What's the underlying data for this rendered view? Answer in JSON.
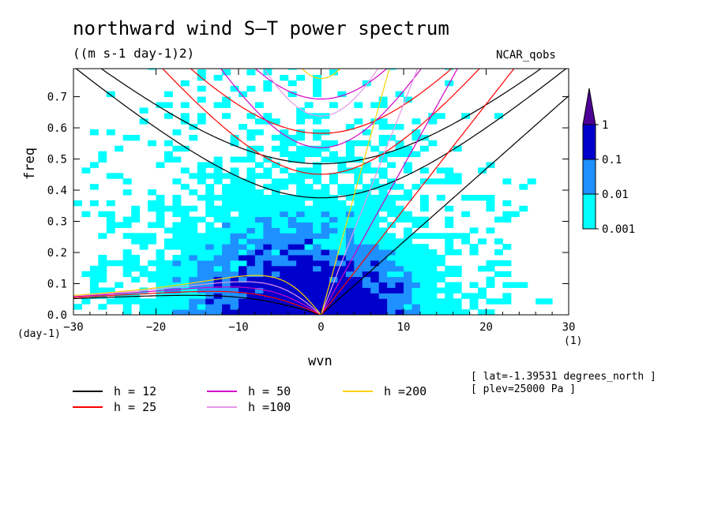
{
  "chart_data": {
    "type": "heatmap",
    "title": "northward wind S–T power spectrum",
    "units": "((m s-1 day-1)2)",
    "dataset": "NCAR_qobs",
    "xlabel": "wvn",
    "ylabel": "freq",
    "x_unit": "(1)",
    "y_unit": "(day-1)",
    "xlim": [
      -30,
      30
    ],
    "ylim": [
      0,
      0.79
    ],
    "x_ticks": [
      "-30",
      "-20",
      "-10",
      "0",
      "10",
      "20",
      "30"
    ],
    "y_ticks": [
      "0.0",
      "0.1",
      "0.2",
      "0.3",
      "0.4",
      "0.5",
      "0.6",
      "0.7"
    ],
    "colorbar": {
      "levels": [
        "0.001",
        "0.01",
        "0.1",
        "1"
      ],
      "colors": [
        "#00ffff",
        "#1e90ff",
        "#0000cd",
        "#4b0096"
      ]
    },
    "dispersion_curves": [
      {
        "label": "h = 12",
        "color": "#000000"
      },
      {
        "label": "h = 25",
        "color": "#ff0000"
      },
      {
        "label": "h = 50",
        "color": "#d200c8"
      },
      {
        "label": "h =100",
        "color": "#e696e6"
      },
      {
        "label": "h =200",
        "color": "#ffd200"
      }
    ],
    "notes": [
      "[ lat=-1.39531 degrees_north ]",
      "[ plev=25000 Pa ]"
    ]
  }
}
